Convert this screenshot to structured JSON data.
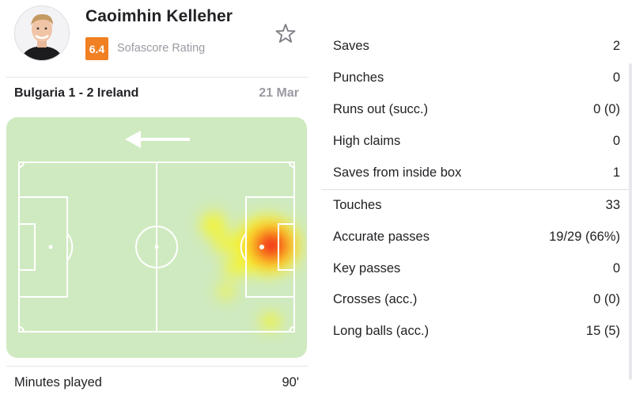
{
  "player": {
    "name": "Caoimhin Kelleher",
    "rating": "6.4",
    "rating_label": "Sofascore Rating",
    "rating_color": "#f08022"
  },
  "match": {
    "title": "Bulgaria 1 - 2 Ireland",
    "date": "21 Mar"
  },
  "minutes": {
    "label": "Minutes played",
    "value": "90'"
  },
  "heatmap": {
    "direction": "left",
    "pitch_color": "#cfeac0"
  },
  "stats": {
    "saves": [
      {
        "label": "Saves",
        "value": "2"
      },
      {
        "label": "Punches",
        "value": "0"
      },
      {
        "label": "Runs out (succ.)",
        "value": "0 (0)"
      },
      {
        "label": "High claims",
        "value": "0"
      },
      {
        "label": "Saves from inside box",
        "value": "1"
      }
    ],
    "passing": [
      {
        "label": "Touches",
        "value": "33"
      },
      {
        "label": "Accurate passes",
        "value": "19/29 (66%)"
      },
      {
        "label": "Key passes",
        "value": "0"
      },
      {
        "label": "Crosses (acc.)",
        "value": "0 (0)"
      },
      {
        "label": "Long balls (acc.)",
        "value": "15 (5)"
      }
    ]
  }
}
